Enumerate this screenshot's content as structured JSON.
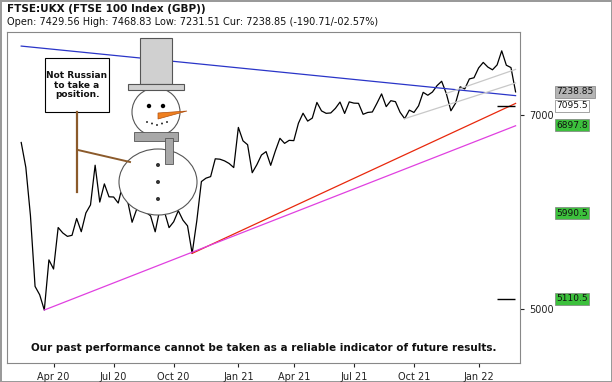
{
  "chart_data": {
    "type": "line",
    "title": "FTSE:UKX (FTSE 100 Index (GBP))",
    "subtitle": "Open: 7429.56 High: 7468.83 Low: 7231.51 Cur: 7238.85 (-190.71/-02.57%)",
    "annotations": [
      {
        "text": "Not Russian\nto take a\nposition."
      },
      {
        "text": "Our past performance cannot be taken as a reliable indicator of future results."
      }
    ],
    "categories": [
      null,
      null,
      null,
      null,
      null,
      null,
      null,
      "Apr 20",
      null,
      null,
      null,
      null,
      null,
      null,
      null,
      null,
      null,
      null,
      null,
      null,
      "Jul 20",
      null,
      null,
      null,
      null,
      null,
      null,
      null,
      null,
      null,
      null,
      null,
      null,
      "Oct 20",
      null,
      null,
      null,
      null,
      null,
      null,
      null,
      null,
      null,
      null,
      null,
      null,
      null,
      "Jan 21",
      null,
      null,
      null,
      null,
      null,
      null,
      null,
      null,
      null,
      null,
      null,
      "Apr 21",
      null,
      null,
      null,
      null,
      null,
      null,
      null,
      null,
      null,
      null,
      null,
      null,
      "Jul 21",
      null,
      null,
      null,
      null,
      null,
      null,
      null,
      null,
      null,
      null,
      null,
      null,
      "Oct 21",
      null,
      null,
      null,
      null,
      null,
      null,
      null,
      null,
      null,
      null,
      null,
      null,
      null,
      "Jan 22",
      null,
      null,
      null,
      null,
      null,
      null,
      null,
      null
    ],
    "series": [
      {
        "color": "#000000",
        "line_style": "solid",
        "values": [
          6718,
          6462,
          5965,
          5237,
          5151,
          4994,
          5510,
          5416,
          5843,
          5787,
          5752,
          5763,
          5936,
          5800,
          5993,
          6076,
          6484,
          6105,
          6292,
          6159,
          6157,
          6095,
          6290,
          6123,
          5897,
          6032,
          6090,
          6001,
          5963,
          5799,
          6032,
          6007,
          5842,
          5902,
          6016,
          5919,
          5860,
          5577,
          5910,
          6316,
          6351,
          6367,
          6550,
          6546,
          6529,
          6502,
          6460,
          6873,
          6735,
          6695,
          6407,
          6489,
          6589,
          6624,
          6483,
          6630,
          6761,
          6709,
          6740,
          6737,
          6916,
          7019,
          6938,
          6969,
          7130,
          7043,
          7018,
          7022,
          7069,
          7134,
          7017,
          7136,
          7123,
          7121,
          7008,
          7027,
          7032,
          7122,
          7218,
          7087,
          7148,
          7138,
          7029,
          6963,
          7051,
          7027,
          7095,
          7234,
          7204,
          7237,
          7303,
          7348,
          7223,
          7044,
          7122,
          7291,
          7269,
          7372,
          7384,
          7485,
          7542,
          7494,
          7466,
          7516,
          7661,
          7513,
          7489,
          7238.85
        ]
      },
      {
        "color": "#2a35c8",
        "line_style": "solid",
        "x": [
          0,
          107
        ],
        "values": [
          7710,
          7200
        ]
      },
      {
        "color": "#e8280c",
        "line_style": "solid",
        "x": [
          37,
          107
        ],
        "values": [
          5577,
          7120
        ]
      },
      {
        "color": "#e040e0",
        "line_style": "solid",
        "x": [
          5,
          107
        ],
        "values": [
          4994,
          6890
        ]
      },
      {
        "color": "#c8c8c8",
        "line_style": "solid",
        "x": [
          83,
          107
        ],
        "values": [
          6963,
          7330
        ]
      },
      {
        "color": "#c8c8c8",
        "line_style": "solid",
        "x": [
          92,
          107
        ],
        "values": [
          7223,
          7470
        ]
      }
    ],
    "levels": [
      {
        "value": 7238.85,
        "label": "7238.85",
        "color": "#b4b4b4"
      },
      {
        "value": 7095.5,
        "label": "7095.5",
        "color": "#ffffff",
        "marker": "dash"
      },
      {
        "value": 6897.8,
        "label": "6897.8",
        "color": "#3cc03c"
      },
      {
        "value": 5990.5,
        "label": "5990.5",
        "color": "#3cc03c"
      },
      {
        "value": 5110.5,
        "label": "5110.5",
        "color": "#3cc03c",
        "marker": "dash"
      }
    ],
    "ylim": [
      4450,
      7850
    ],
    "yticks": [
      5000,
      7000
    ],
    "grid": false
  }
}
